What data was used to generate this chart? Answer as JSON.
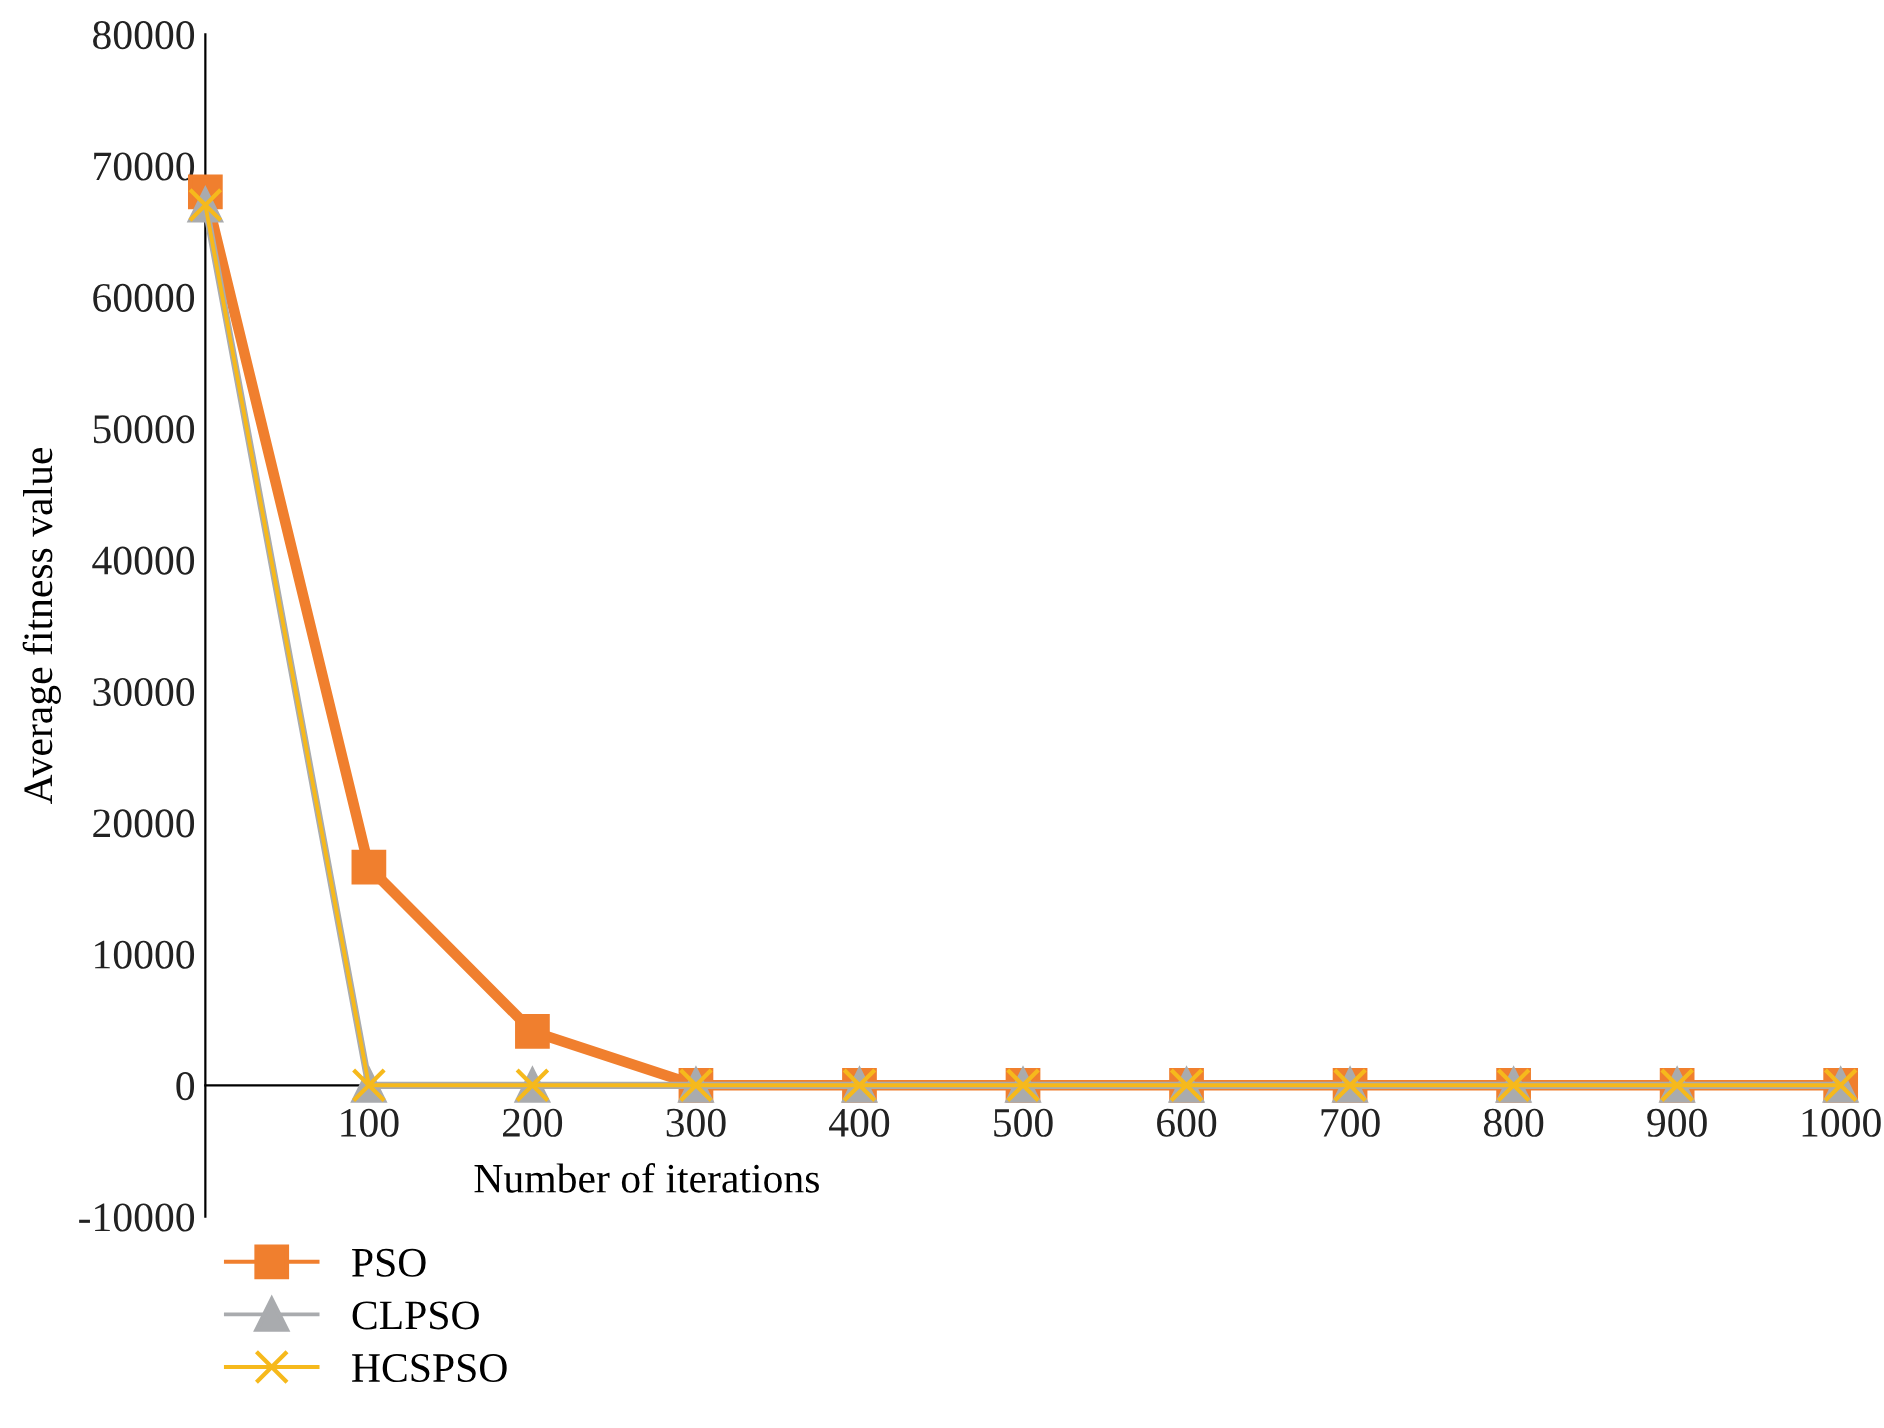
{
  "chart_data": {
    "type": "line",
    "xlabel": "Number of iterations",
    "ylabel": "Average fitness value",
    "x": [
      0,
      100,
      200,
      300,
      400,
      500,
      600,
      700,
      800,
      900,
      1000
    ],
    "series": [
      {
        "name": "PSO",
        "color": "#f07f2e",
        "marker": "square",
        "values": [
          68000,
          16600,
          4100,
          0,
          0,
          0,
          0,
          0,
          0,
          0,
          0
        ]
      },
      {
        "name": "CLPSO",
        "color": "#a9abae",
        "marker": "triangle",
        "values": [
          67000,
          0,
          0,
          0,
          0,
          0,
          0,
          0,
          0,
          0,
          0
        ]
      },
      {
        "name": "HCSPSO",
        "color": "#f6b91c",
        "marker": "cross",
        "values": [
          67000,
          0,
          0,
          0,
          0,
          0,
          0,
          0,
          0,
          0,
          0
        ]
      }
    ],
    "xlim": [
      0,
      1000
    ],
    "xticks": [
      100,
      200,
      300,
      400,
      500,
      600,
      700,
      800,
      900,
      1000
    ],
    "ylim": [
      -10000,
      80000
    ],
    "yticks": [
      -10000,
      0,
      10000,
      20000,
      30000,
      40000,
      50000,
      60000,
      70000,
      80000
    ],
    "grid": false,
    "legend": "bottom left"
  }
}
